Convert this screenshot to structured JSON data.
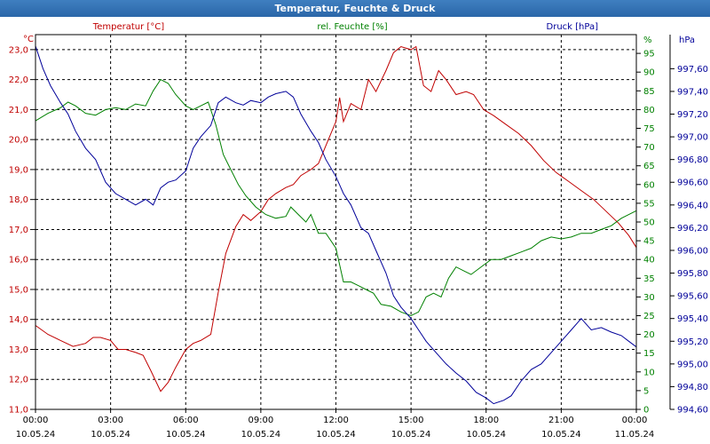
{
  "window": {
    "title": "Temperatur, Feuchte & Druck"
  },
  "colors": {
    "temperature": "#c00000",
    "humidity": "#008000",
    "pressure": "#000099",
    "grid": "#000000",
    "frame": "#000000"
  },
  "chart_data": {
    "type": "line",
    "grid": true,
    "x_ticks": [
      {
        "time": "00:00",
        "date": "10.05.24"
      },
      {
        "time": "03:00",
        "date": "10.05.24"
      },
      {
        "time": "06:00",
        "date": "10.05.24"
      },
      {
        "time": "09:00",
        "date": "10.05.24"
      },
      {
        "time": "12:00",
        "date": "10.05.24"
      },
      {
        "time": "15:00",
        "date": "10.05.24"
      },
      {
        "time": "18:00",
        "date": "10.05.24"
      },
      {
        "time": "21:00",
        "date": "10.05.24"
      },
      {
        "time": "00:00",
        "date": "11.05.24"
      }
    ],
    "xlim": [
      0,
      24
    ],
    "x_unit": "hours since 10.05.24 00:00",
    "axes": {
      "temperature": {
        "header": "°C",
        "series_label": "Temperatur [°C]",
        "ylim": [
          11.0,
          23.5
        ],
        "ticks": [
          "11,0",
          "12,0",
          "13,0",
          "14,0",
          "15,0",
          "16,0",
          "17,0",
          "18,0",
          "19,0",
          "20,0",
          "21,0",
          "22,0",
          "23,0"
        ],
        "tick_values": [
          11,
          12,
          13,
          14,
          15,
          16,
          17,
          18,
          19,
          20,
          21,
          22,
          23
        ]
      },
      "humidity": {
        "header": "%",
        "series_label": "rel. Feuchte [%]",
        "ylim": [
          0,
          100
        ],
        "ticks": [
          "0",
          "5",
          "10",
          "15",
          "20",
          "25",
          "30",
          "35",
          "40",
          "45",
          "50",
          "55",
          "60",
          "65",
          "70",
          "75",
          "80",
          "85",
          "90",
          "95",
          "%"
        ],
        "tick_values": [
          0,
          5,
          10,
          15,
          20,
          25,
          30,
          35,
          40,
          45,
          50,
          55,
          60,
          65,
          70,
          75,
          80,
          85,
          90,
          95
        ]
      },
      "pressure": {
        "header": "hPa",
        "series_label": "Druck [hPa]",
        "ylim": [
          994.6,
          997.9
        ],
        "ticks": [
          "994,60",
          "994,80",
          "995,00",
          "995,20",
          "995,40",
          "995,60",
          "995,80",
          "996,00",
          "996,20",
          "996,40",
          "996,60",
          "996,80",
          "997,00",
          "997,20",
          "997,40",
          "997,60"
        ],
        "tick_values": [
          994.6,
          994.8,
          995.0,
          995.2,
          995.4,
          995.6,
          995.8,
          996.0,
          996.2,
          996.4,
          996.6,
          996.8,
          997.0,
          997.2,
          997.4,
          997.6
        ]
      }
    },
    "series": [
      {
        "name": "Temperatur [°C]",
        "axis": "temperature",
        "points": [
          [
            0,
            13.8
          ],
          [
            0.5,
            13.5
          ],
          [
            1,
            13.3
          ],
          [
            1.5,
            13.1
          ],
          [
            2,
            13.2
          ],
          [
            2.3,
            13.4
          ],
          [
            2.6,
            13.4
          ],
          [
            3,
            13.3
          ],
          [
            3.3,
            13.0
          ],
          [
            3.6,
            13.0
          ],
          [
            4,
            12.9
          ],
          [
            4.3,
            12.8
          ],
          [
            4.6,
            12.3
          ],
          [
            5,
            11.6
          ],
          [
            5.3,
            11.9
          ],
          [
            5.6,
            12.4
          ],
          [
            6,
            13.0
          ],
          [
            6.3,
            13.2
          ],
          [
            6.6,
            13.3
          ],
          [
            7,
            13.5
          ],
          [
            7.3,
            14.9
          ],
          [
            7.6,
            16.2
          ],
          [
            8,
            17.1
          ],
          [
            8.3,
            17.5
          ],
          [
            8.6,
            17.3
          ],
          [
            9,
            17.6
          ],
          [
            9.3,
            18.0
          ],
          [
            9.6,
            18.2
          ],
          [
            10,
            18.4
          ],
          [
            10.3,
            18.5
          ],
          [
            10.6,
            18.8
          ],
          [
            11,
            19.0
          ],
          [
            11.3,
            19.2
          ],
          [
            11.6,
            19.8
          ],
          [
            12,
            20.6
          ],
          [
            12.15,
            21.4
          ],
          [
            12.3,
            20.6
          ],
          [
            12.6,
            21.2
          ],
          [
            13,
            21.0
          ],
          [
            13.3,
            22.0
          ],
          [
            13.6,
            21.6
          ],
          [
            14,
            22.3
          ],
          [
            14.3,
            22.9
          ],
          [
            14.6,
            23.1
          ],
          [
            15,
            23.0
          ],
          [
            15.2,
            23.1
          ],
          [
            15.5,
            21.8
          ],
          [
            15.8,
            21.6
          ],
          [
            16.1,
            22.3
          ],
          [
            16.4,
            22.0
          ],
          [
            16.8,
            21.5
          ],
          [
            17.2,
            21.6
          ],
          [
            17.5,
            21.5
          ],
          [
            17.9,
            21.0
          ],
          [
            18.3,
            20.8
          ],
          [
            18.8,
            20.5
          ],
          [
            19.3,
            20.2
          ],
          [
            19.8,
            19.8
          ],
          [
            20.3,
            19.3
          ],
          [
            20.8,
            18.9
          ],
          [
            21.3,
            18.6
          ],
          [
            21.8,
            18.3
          ],
          [
            22.3,
            18.0
          ],
          [
            22.8,
            17.6
          ],
          [
            23.3,
            17.2
          ],
          [
            23.7,
            16.8
          ],
          [
            24,
            16.4
          ]
        ]
      },
      {
        "name": "rel. Feuchte [%]",
        "axis": "humidity",
        "points": [
          [
            0,
            77
          ],
          [
            0.5,
            79
          ],
          [
            1,
            80.5
          ],
          [
            1.3,
            82
          ],
          [
            1.6,
            81
          ],
          [
            2,
            79
          ],
          [
            2.4,
            78.5
          ],
          [
            2.8,
            80
          ],
          [
            3.2,
            80.5
          ],
          [
            3.6,
            80
          ],
          [
            4,
            81.5
          ],
          [
            4.4,
            81
          ],
          [
            4.7,
            85
          ],
          [
            5,
            88
          ],
          [
            5.3,
            87
          ],
          [
            5.6,
            84
          ],
          [
            6,
            81
          ],
          [
            6.3,
            80
          ],
          [
            6.6,
            81
          ],
          [
            6.9,
            82
          ],
          [
            7.2,
            76
          ],
          [
            7.5,
            68
          ],
          [
            7.8,
            64
          ],
          [
            8.1,
            60
          ],
          [
            8.4,
            57
          ],
          [
            8.8,
            54
          ],
          [
            9.2,
            52
          ],
          [
            9.6,
            51
          ],
          [
            10,
            51.5
          ],
          [
            10.2,
            54
          ],
          [
            10.5,
            52
          ],
          [
            10.8,
            50
          ],
          [
            11,
            52
          ],
          [
            11.3,
            47
          ],
          [
            11.6,
            47
          ],
          [
            12,
            43
          ],
          [
            12.3,
            34
          ],
          [
            12.6,
            34
          ],
          [
            12.9,
            33
          ],
          [
            13.2,
            32
          ],
          [
            13.5,
            31
          ],
          [
            13.8,
            28
          ],
          [
            14.2,
            27.5
          ],
          [
            14.6,
            26
          ],
          [
            15,
            25
          ],
          [
            15.3,
            26
          ],
          [
            15.6,
            30
          ],
          [
            15.9,
            31
          ],
          [
            16.2,
            30
          ],
          [
            16.5,
            35
          ],
          [
            16.8,
            38
          ],
          [
            17.1,
            37
          ],
          [
            17.4,
            36
          ],
          [
            17.8,
            38
          ],
          [
            18.2,
            40
          ],
          [
            18.6,
            40
          ],
          [
            19,
            41
          ],
          [
            19.4,
            42
          ],
          [
            19.8,
            43
          ],
          [
            20.2,
            45
          ],
          [
            20.6,
            46
          ],
          [
            21,
            45.5
          ],
          [
            21.4,
            46
          ],
          [
            21.8,
            47
          ],
          [
            22.2,
            47
          ],
          [
            22.6,
            48
          ],
          [
            23,
            49
          ],
          [
            23.4,
            51
          ],
          [
            24,
            53
          ]
        ]
      },
      {
        "name": "Druck [hPa]",
        "axis": "pressure",
        "points": [
          [
            0,
            997.8
          ],
          [
            0.3,
            997.6
          ],
          [
            0.6,
            997.45
          ],
          [
            1,
            997.3
          ],
          [
            1.3,
            997.2
          ],
          [
            1.6,
            997.05
          ],
          [
            2,
            996.9
          ],
          [
            2.4,
            996.8
          ],
          [
            2.8,
            996.6
          ],
          [
            3.2,
            996.5
          ],
          [
            3.6,
            996.45
          ],
          [
            4,
            996.4
          ],
          [
            4.4,
            996.45
          ],
          [
            4.7,
            996.4
          ],
          [
            5,
            996.55
          ],
          [
            5.3,
            996.6
          ],
          [
            5.6,
            996.62
          ],
          [
            6,
            996.7
          ],
          [
            6.3,
            996.9
          ],
          [
            6.6,
            997.0
          ],
          [
            7,
            997.1
          ],
          [
            7.3,
            997.3
          ],
          [
            7.6,
            997.35
          ],
          [
            8,
            997.3
          ],
          [
            8.3,
            997.28
          ],
          [
            8.6,
            997.32
          ],
          [
            9,
            997.3
          ],
          [
            9.3,
            997.35
          ],
          [
            9.6,
            997.38
          ],
          [
            10,
            997.4
          ],
          [
            10.3,
            997.35
          ],
          [
            10.6,
            997.2
          ],
          [
            11,
            997.05
          ],
          [
            11.3,
            996.95
          ],
          [
            11.6,
            996.8
          ],
          [
            12,
            996.65
          ],
          [
            12.3,
            996.5
          ],
          [
            12.6,
            996.4
          ],
          [
            13,
            996.2
          ],
          [
            13.3,
            996.15
          ],
          [
            13.6,
            996.0
          ],
          [
            14,
            995.8
          ],
          [
            14.3,
            995.6
          ],
          [
            14.6,
            995.5
          ],
          [
            15,
            995.4
          ],
          [
            15.3,
            995.3
          ],
          [
            15.6,
            995.2
          ],
          [
            16,
            995.1
          ],
          [
            16.4,
            995.0
          ],
          [
            16.8,
            994.92
          ],
          [
            17.2,
            994.85
          ],
          [
            17.6,
            994.75
          ],
          [
            18,
            994.7
          ],
          [
            18.3,
            994.65
          ],
          [
            18.7,
            994.68
          ],
          [
            19,
            994.72
          ],
          [
            19.4,
            994.85
          ],
          [
            19.8,
            994.95
          ],
          [
            20.2,
            995.0
          ],
          [
            20.6,
            995.1
          ],
          [
            21,
            995.2
          ],
          [
            21.4,
            995.3
          ],
          [
            21.8,
            995.4
          ],
          [
            22.2,
            995.3
          ],
          [
            22.6,
            995.32
          ],
          [
            23,
            995.28
          ],
          [
            23.4,
            995.25
          ],
          [
            23.7,
            995.2
          ],
          [
            24,
            995.15
          ]
        ]
      }
    ]
  }
}
